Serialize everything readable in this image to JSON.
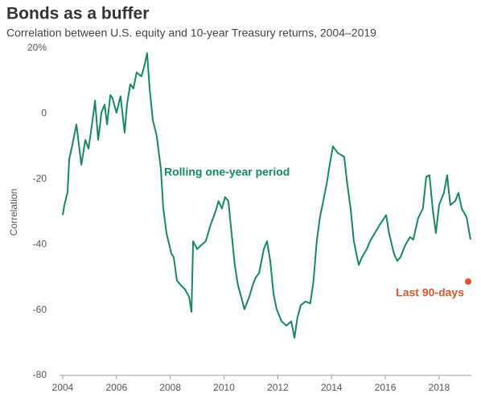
{
  "chart_data": {
    "type": "line",
    "title": "Bonds as a buffer",
    "subtitle": "Correlation between U.S. equity and 10-year Treasury returns, 2004–2019",
    "y_label": "Correlation",
    "xlim": [
      2004,
      2019.2
    ],
    "ylim": [
      -80,
      20
    ],
    "xticks": [
      2004,
      2006,
      2008,
      2010,
      2012,
      2014,
      2016,
      2018
    ],
    "yticks": [
      {
        "value": 20,
        "label": "20%"
      },
      0,
      -20,
      -40,
      -60,
      -80
    ],
    "series": [
      {
        "name": "Rolling one-year period",
        "color": "#168a5e",
        "x": [
          2004.0,
          2004.06,
          2004.18,
          2004.24,
          2004.36,
          2004.51,
          2004.6,
          2004.69,
          2004.84,
          2004.96,
          2005.11,
          2005.2,
          2005.32,
          2005.44,
          2005.56,
          2005.65,
          2005.77,
          2005.85,
          2006.0,
          2006.15,
          2006.3,
          2006.39,
          2006.51,
          2006.63,
          2006.75,
          2006.93,
          2007.05,
          2007.14,
          2007.23,
          2007.35,
          2007.5,
          2007.65,
          2007.74,
          2007.86,
          2008.04,
          2008.13,
          2008.25,
          2008.4,
          2008.55,
          2008.7,
          2008.79,
          2008.85,
          2009.0,
          2009.15,
          2009.32,
          2009.5,
          2009.68,
          2009.8,
          2009.92,
          2010.04,
          2010.16,
          2010.28,
          2010.4,
          2010.52,
          2010.64,
          2010.76,
          2010.94,
          2011.06,
          2011.18,
          2011.3,
          2011.48,
          2011.6,
          2011.72,
          2011.84,
          2011.96,
          2012.14,
          2012.32,
          2012.5,
          2012.62,
          2012.73,
          2012.85,
          2013.03,
          2013.21,
          2013.33,
          2013.45,
          2013.57,
          2013.69,
          2013.81,
          2013.93,
          2014.05,
          2014.23,
          2014.47,
          2014.59,
          2014.71,
          2014.83,
          2015.01,
          2015.13,
          2015.31,
          2015.43,
          2015.61,
          2015.79,
          2016.03,
          2016.14,
          2016.32,
          2016.44,
          2016.56,
          2016.74,
          2016.92,
          2017.04,
          2017.22,
          2017.4,
          2017.52,
          2017.64,
          2017.76,
          2017.88,
          2018.0,
          2018.18,
          2018.3,
          2018.42,
          2018.6,
          2018.72,
          2018.84,
          2019.02,
          2019.17
        ],
        "values": [
          -31,
          -28,
          -24,
          -14,
          -9.5,
          -3.3,
          -9.5,
          -15.6,
          -8,
          -10.7,
          -2,
          4,
          -8,
          0.3,
          2.8,
          -3.3,
          5.7,
          4.8,
          0.3,
          5.3,
          -5.8,
          2.8,
          9,
          7.7,
          12.6,
          11.4,
          15,
          18.5,
          7.7,
          -2,
          -7,
          -16.9,
          -29,
          -36.5,
          -42.7,
          -43.9,
          -51,
          -52.5,
          -53.7,
          -56,
          -60.6,
          -39,
          -41.4,
          -40.2,
          -39,
          -34,
          -30,
          -26.7,
          -29,
          -25.5,
          -26.7,
          -36.5,
          -46.3,
          -52.5,
          -56,
          -59.8,
          -56,
          -52.5,
          -50,
          -48.8,
          -41.4,
          -39,
          -45,
          -55,
          -59.8,
          -63.5,
          -64.8,
          -63.5,
          -68.5,
          -62.3,
          -58.6,
          -57.4,
          -58,
          -51,
          -39,
          -31.6,
          -26.7,
          -21.8,
          -15.6,
          -10,
          -12,
          -13.2,
          -21.8,
          -29,
          -39,
          -46.3,
          -43.9,
          -41.4,
          -39,
          -36.5,
          -34,
          -31,
          -36.5,
          -42.7,
          -45,
          -43.9,
          -40.2,
          -37.7,
          -38.5,
          -32,
          -29,
          -19.3,
          -18.8,
          -29,
          -36.5,
          -27.9,
          -24.2,
          -18.8,
          -27.9,
          -26.7,
          -24.2,
          -29,
          -31.6,
          -38.5
        ]
      },
      {
        "name": "Last 90-days",
        "color": "#e5532a",
        "x": [
          2019.08
        ],
        "values": [
          -51.3
        ]
      }
    ]
  }
}
